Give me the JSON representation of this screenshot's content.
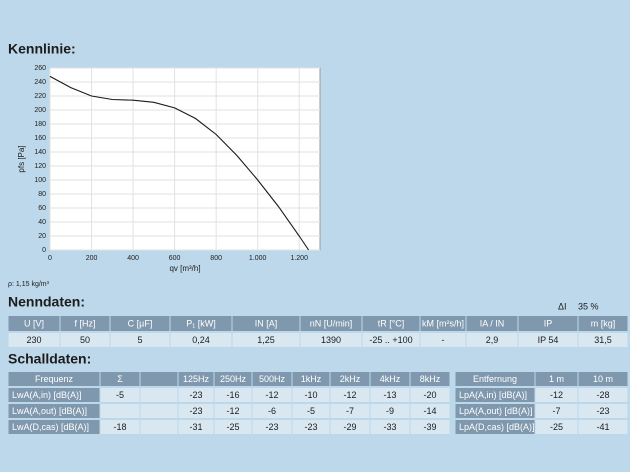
{
  "kennlinie": {
    "title": "Kennlinie:",
    "note": "ρ: 1,15 kg/m³"
  },
  "chart_data": {
    "type": "line",
    "xlabel": "qv [m³/h]",
    "ylabel": "pfs [Pa]",
    "color": "#1a1a1a",
    "x": [
      0,
      100,
      200,
      300,
      400,
      500,
      600,
      700,
      800,
      900,
      1000,
      1100,
      1200,
      1245
    ],
    "values": [
      248,
      232,
      220,
      215,
      214,
      211,
      203,
      188,
      165,
      135,
      100,
      62,
      20,
      0
    ],
    "xlim": [
      0,
      1300
    ],
    "ylim": [
      0,
      260
    ],
    "xticks": [
      0,
      200,
      400,
      600,
      800,
      {
        "value": 1000,
        "label": "1.000"
      },
      {
        "value": 1200,
        "label": "1.200"
      }
    ],
    "yticks": [
      0,
      20,
      40,
      60,
      80,
      100,
      120,
      140,
      160,
      180,
      200,
      220,
      240,
      260
    ],
    "grid": true
  },
  "nenndaten": {
    "title": "Nenndaten:",
    "delta_label": "ΔI",
    "delta_value": "35 %",
    "headers": [
      "U [V]",
      "f [Hz]",
      "C [µF]",
      "P₁ [kW]",
      "IN [A]",
      "nN [U/min]",
      "tR [°C]",
      "kM [m²s/h]",
      "IA / IN",
      "IP",
      "m [kg]"
    ],
    "rows": [
      [
        "230",
        "50",
        "5",
        "0,24",
        "1,25",
        "1390",
        "-25 .. +100",
        "-",
        "2,9",
        "IP 54",
        "31,5"
      ]
    ]
  },
  "schalldaten": {
    "title": "Schalldaten:",
    "headers": [
      "Frequenz",
      "Σ",
      "125Hz",
      "250Hz",
      "500Hz",
      "1kHz",
      "2kHz",
      "4kHz",
      "8kHz"
    ],
    "rows": [
      [
        "LwA(A,in) [dB(A)]",
        "-5",
        "-23",
        "-16",
        "-12",
        "-10",
        "-12",
        "-13",
        "-20"
      ],
      [
        "LwA(A,out) [dB(A)]",
        null,
        "-23",
        "-12",
        "-6",
        "-5",
        "-7",
        "-9",
        "-14"
      ],
      [
        "LwA(D,cas) [dB(A)]",
        "-18",
        "-31",
        "-25",
        "-23",
        "-23",
        "-29",
        "-33",
        "-39"
      ]
    ],
    "distance_headers": [
      "Entfernung",
      "1 m",
      "10 m"
    ],
    "distance_rows": [
      [
        "LpA(A,in) [dB(A)]",
        "-12",
        "-28"
      ],
      [
        "LpA(A,out) [dB(A)]",
        "-7",
        "-23"
      ],
      [
        "LpA(D,cas) [dB(A)]",
        "-25",
        "-41"
      ]
    ]
  }
}
